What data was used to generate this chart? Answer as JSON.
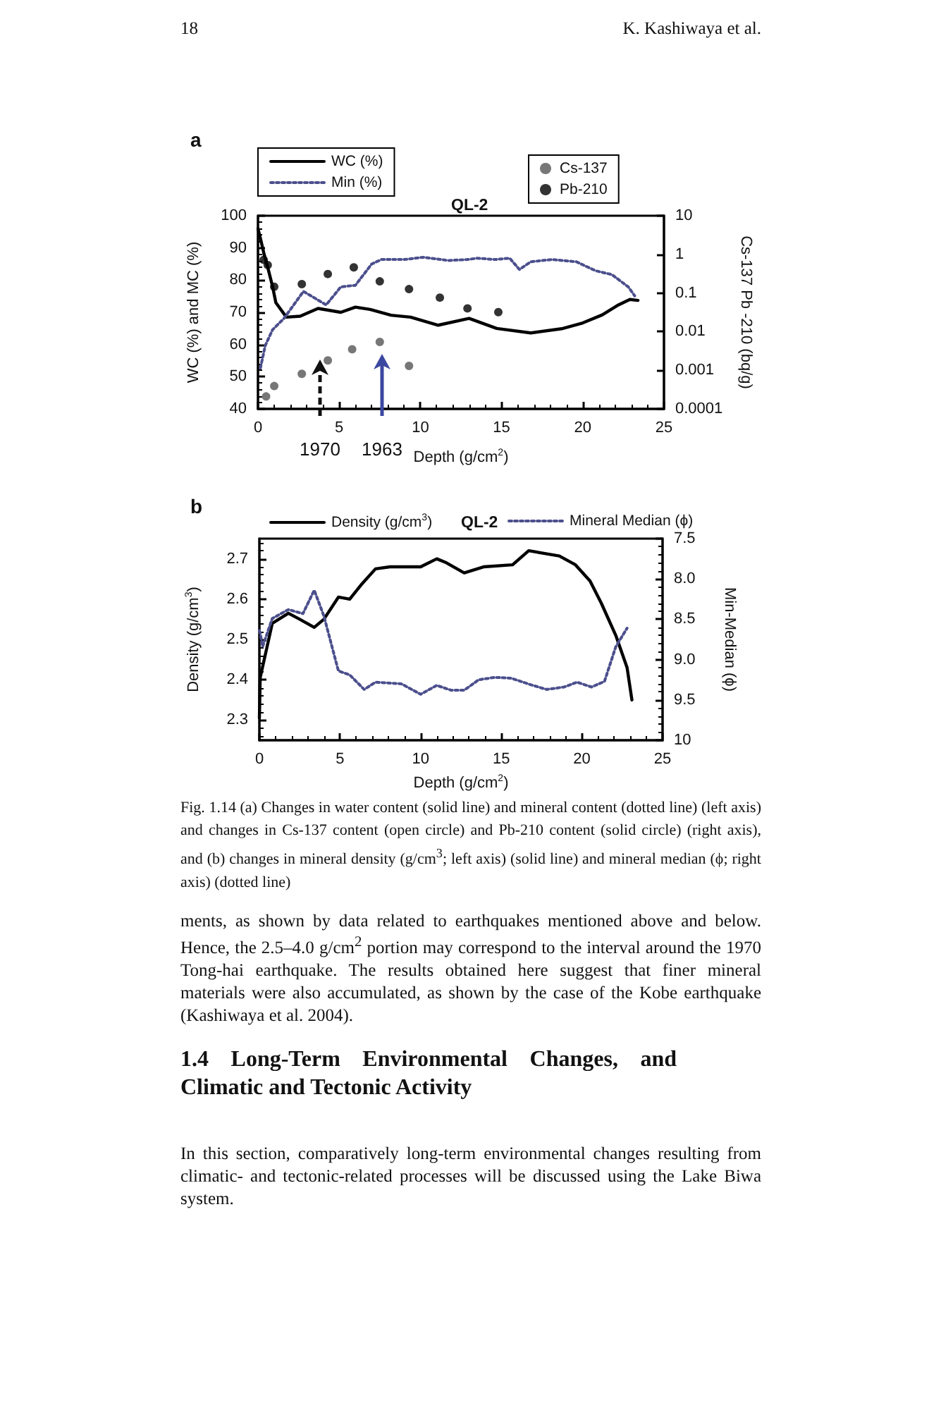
{
  "chart_data": [
    {
      "type": "line",
      "title": "a",
      "subtitle": "QL-2",
      "xlabel": "Depth (g/cm$^{2}$)",
      "ylabel": "WC (%) and MC (%)",
      "y2label": "Cs-137 Pb -210 (bq/g)",
      "xlim": [
        0,
        25
      ],
      "xticks": [
        0,
        5,
        10,
        15,
        20,
        25
      ],
      "ylim": [
        40,
        100
      ],
      "yticks": [
        40,
        50,
        60,
        70,
        80,
        90,
        100
      ],
      "y2lim": [
        0.0001,
        10
      ],
      "y2ticks": [
        0.0001,
        0.001,
        0.01,
        0.1,
        1,
        10
      ],
      "log": "y2",
      "legend": "top",
      "series": [
        {
          "name": "WC (%)",
          "type": "line",
          "color": "#000000",
          "line_style": "solid",
          "marker": "none",
          "x": [
            0,
            0.15,
            0.35,
            0.6,
            0.9,
            1.1,
            1.75,
            2.6,
            3.7,
            5.1,
            6,
            6.9,
            8.2,
            9.4,
            11.1,
            13,
            14.7,
            16.8,
            18.7,
            20,
            21.2,
            22.2,
            22.9,
            23.4
          ],
          "values": [
            96,
            93,
            88.6,
            84,
            78,
            73,
            68.5,
            68.8,
            71.2,
            70,
            71.6,
            70.9,
            69.1,
            68.5,
            66,
            68.1,
            65,
            63.6,
            64.9,
            66.7,
            69.2,
            72.3,
            74,
            73.7
          ]
        },
        {
          "name": "Min (%)",
          "type": "line",
          "color": "#4b4f8c",
          "line_style": "dotted",
          "marker": "none",
          "x": [
            0.15,
            0.45,
            0.9,
            1.6,
            2.8,
            4.2,
            5.1,
            6,
            7,
            7.6,
            9,
            10.2,
            11.7,
            12.9,
            13.5,
            14.6,
            15.5,
            16.1,
            16.8,
            18.1,
            19.6,
            20.8,
            21.8,
            22.8,
            23.2
          ],
          "values": [
            52.7,
            59.7,
            64.6,
            68.1,
            76.5,
            72.3,
            77.9,
            78.4,
            85,
            86.4,
            86.4,
            87.1,
            86.1,
            86.4,
            86.8,
            86.4,
            86.8,
            83.3,
            85.7,
            86.4,
            85.7,
            82.9,
            81.7,
            77.9,
            75.1
          ]
        },
        {
          "name": "Cs-137",
          "type": "scatter",
          "axis": "y2",
          "color": "#555555",
          "marker": "circle",
          "x": [
            0.5,
            1,
            2.7,
            4.3,
            5.8,
            7.5,
            9.3
          ],
          "values": [
            0.00021,
            0.00039,
            0.00081,
            0.0018,
            0.0035,
            0.0054,
            0.0013
          ]
        },
        {
          "name": "Pb-210",
          "type": "scatter",
          "axis": "y2",
          "color": "#000000",
          "marker": "circle",
          "x": [
            0.35,
            0.6,
            1,
            2.7,
            4.3,
            5.9,
            7.5,
            9.3,
            11.2,
            12.9,
            14.8
          ],
          "values": [
            0.72,
            0.53,
            0.145,
            0.17,
            0.31,
            0.46,
            0.2,
            0.126,
            0.076,
            0.04,
            0.032
          ]
        }
      ],
      "annotations": [
        "18",
        "K. Kashiwaya et al.",
        "1970",
        "1963"
      ]
    },
    {
      "type": "line",
      "title": "b",
      "subtitle": "QL-2",
      "xlabel": "Depth (g/cm$^{2}$)",
      "ylabel": "Density (g/cm$^{3}$)",
      "y2label": "Min-Median (ϕ)",
      "xlim": [
        0,
        25
      ],
      "xticks": [
        0,
        5,
        10,
        15,
        20,
        25
      ],
      "ylim": [
        2.25,
        2.75
      ],
      "yticks": [
        2.3,
        2.4,
        2.5,
        2.6,
        2.7
      ],
      "y2lim": [
        10,
        7.5
      ],
      "y2ticks": [
        {
          "value": 7.5,
          "label": "7.5"
        },
        {
          "value": 8,
          "label": "8.0"
        },
        {
          "value": 8.5,
          "label": "8.5"
        },
        {
          "value": 9,
          "label": "9.0"
        },
        {
          "value": 9.5,
          "label": "9.5"
        },
        {
          "value": 10,
          "label": "10"
        }
      ],
      "legend": "top",
      "series": [
        {
          "name": "Density (g/cm$^{3}$)",
          "type": "line",
          "color": "#000000",
          "line_style": "solid",
          "marker": "none",
          "x": [
            0,
            0.05,
            0.8,
            1.8,
            2.5,
            3.4,
            4,
            4.9,
            5.6,
            6.3,
            7.2,
            8.1,
            9,
            10,
            11,
            11.6,
            12.7,
            13.9,
            15.7,
            16.7,
            17.7,
            18.6,
            19.6,
            20.5,
            21.2,
            22.1,
            22.8,
            23.1
          ],
          "values": [
            2.305,
            2.405,
            2.54,
            2.565,
            2.55,
            2.53,
            2.55,
            2.605,
            2.6,
            2.635,
            2.675,
            2.68,
            2.68,
            2.68,
            2.7,
            2.69,
            2.665,
            2.68,
            2.685,
            2.72,
            2.713,
            2.707,
            2.685,
            2.645,
            2.59,
            2.51,
            2.43,
            2.35
          ]
        },
        {
          "name": "Mineral Median (ϕ)",
          "type": "line",
          "axis": "y2",
          "color": "#4b4f8c",
          "line_style": "dotted",
          "marker": "none",
          "x": [
            0,
            0.05,
            0.2,
            0.8,
            1.8,
            2.7,
            3.4,
            4,
            4.9,
            5.6,
            6.5,
            7.2,
            8.8,
            10,
            11,
            11.9,
            12.7,
            13.6,
            14.6,
            15.6,
            16.8,
            17.8,
            18.9,
            19.7,
            20.6,
            21.4,
            22.1,
            22.8
          ],
          "values": [
            8.64,
            8.67,
            8.84,
            8.49,
            8.38,
            8.43,
            8.14,
            8.46,
            9.14,
            9.19,
            9.37,
            9.28,
            9.3,
            9.43,
            9.32,
            9.38,
            9.38,
            9.25,
            9.22,
            9.23,
            9.31,
            9.37,
            9.34,
            9.28,
            9.34,
            9.27,
            8.84,
            8.61
          ]
        }
      ],
      "annotations": [
        "Fig. 1.14 (a) Changes in water content (solid line) and mineral content (dotted line) (left axis) and changes in Cs-137 content (open circle) and Pb-210 content (solid circle) (right axis), and (b) changes in mineral density (g/cm$^{3}$; left axis) (solid line) and mineral median (ϕ; right axis) (dotted line)",
        "ments, as shown by data related to earthquakes mentioned above and below. Hence, the 2.5–4.0 g/cm$^{2}$ portion may correspond to the interval around the 1970 Tong-hai earthquake. The results obtained here suggest that finer mineral materials were also accumulated, as shown by the case of the Kobe earthquake (Kashiwaya et al. 2004).",
        "1.4 Long-Term Environmental Changes, and Climatic and Tectonic Activity",
        "In this section, comparatively long-term environmental changes resulting from climatic- and tectonic-related processes will be discussed using the Lake Biwa system."
      ]
    }
  ]
}
